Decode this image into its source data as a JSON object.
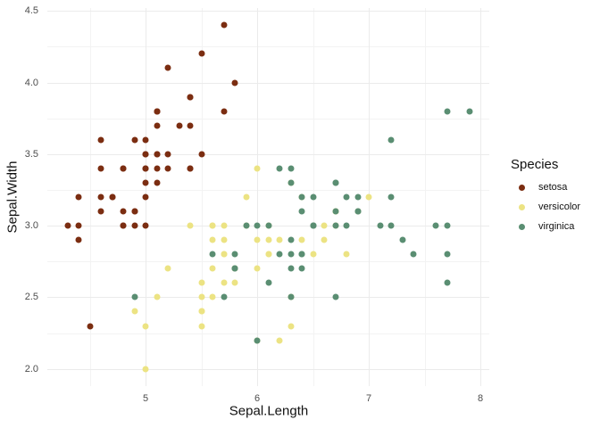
{
  "chart_data": {
    "type": "scatter",
    "title": "",
    "xlabel": "Sepal.Length",
    "ylabel": "Sepal.Width",
    "legend_title": "Species",
    "legend_position": "right",
    "grid": true,
    "background": "#FFFFFF",
    "grid_major_color": "#EBEBEB",
    "grid_minor_color": "#F3F3F3",
    "tick_label_color": "#4D4D4D",
    "x_domain": [
      4.12,
      8.08
    ],
    "y_domain": [
      1.88,
      4.52
    ],
    "x_major_ticks": [
      5,
      6,
      7,
      8
    ],
    "x_tick_labels": [
      "5",
      "6",
      "7",
      "8"
    ],
    "x_minor_ticks": [
      4.5,
      5.5,
      6.5,
      7.5
    ],
    "y_major_ticks": [
      2.0,
      2.5,
      3.0,
      3.5,
      4.0,
      4.5
    ],
    "y_tick_labels": [
      "2.0",
      "2.5",
      "3.0",
      "3.5",
      "4.0",
      "4.5"
    ],
    "y_minor_ticks": [
      2.25,
      2.75,
      3.25,
      3.75,
      4.25
    ],
    "series": [
      {
        "name": "setosa",
        "color": "#7B2D11",
        "points": [
          [
            5.1,
            3.5
          ],
          [
            4.9,
            3.0
          ],
          [
            4.7,
            3.2
          ],
          [
            4.6,
            3.1
          ],
          [
            5.0,
            3.6
          ],
          [
            5.4,
            3.9
          ],
          [
            4.6,
            3.4
          ],
          [
            5.0,
            3.4
          ],
          [
            4.4,
            2.9
          ],
          [
            4.9,
            3.1
          ],
          [
            5.4,
            3.7
          ],
          [
            4.8,
            3.4
          ],
          [
            4.8,
            3.0
          ],
          [
            4.3,
            3.0
          ],
          [
            5.8,
            4.0
          ],
          [
            5.7,
            4.4
          ],
          [
            5.4,
            3.9
          ],
          [
            5.1,
            3.5
          ],
          [
            5.7,
            3.8
          ],
          [
            5.1,
            3.8
          ],
          [
            5.4,
            3.4
          ],
          [
            5.1,
            3.7
          ],
          [
            4.6,
            3.6
          ],
          [
            5.1,
            3.3
          ],
          [
            4.8,
            3.4
          ],
          [
            5.0,
            3.0
          ],
          [
            5.0,
            3.4
          ],
          [
            5.2,
            3.5
          ],
          [
            5.2,
            3.4
          ],
          [
            4.7,
            3.2
          ],
          [
            4.8,
            3.1
          ],
          [
            5.4,
            3.4
          ],
          [
            5.2,
            4.1
          ],
          [
            5.5,
            4.2
          ],
          [
            4.9,
            3.1
          ],
          [
            5.0,
            3.2
          ],
          [
            5.5,
            3.5
          ],
          [
            4.9,
            3.6
          ],
          [
            4.4,
            3.0
          ],
          [
            5.1,
            3.4
          ],
          [
            5.0,
            3.5
          ],
          [
            4.5,
            2.3
          ],
          [
            4.4,
            3.2
          ],
          [
            5.0,
            3.5
          ],
          [
            5.1,
            3.8
          ],
          [
            4.8,
            3.0
          ],
          [
            5.1,
            3.8
          ],
          [
            4.6,
            3.2
          ],
          [
            5.3,
            3.7
          ],
          [
            5.0,
            3.3
          ]
        ]
      },
      {
        "name": "versicolor",
        "color": "#ECE383",
        "points": [
          [
            7.0,
            3.2
          ],
          [
            6.4,
            3.2
          ],
          [
            6.9,
            3.1
          ],
          [
            5.5,
            2.3
          ],
          [
            6.5,
            2.8
          ],
          [
            5.7,
            2.8
          ],
          [
            6.3,
            3.3
          ],
          [
            4.9,
            2.4
          ],
          [
            6.6,
            2.9
          ],
          [
            5.2,
            2.7
          ],
          [
            5.0,
            2.0
          ],
          [
            5.9,
            3.0
          ],
          [
            6.0,
            2.2
          ],
          [
            6.1,
            2.9
          ],
          [
            5.6,
            2.9
          ],
          [
            6.7,
            3.1
          ],
          [
            5.6,
            3.0
          ],
          [
            5.8,
            2.7
          ],
          [
            6.2,
            2.2
          ],
          [
            5.6,
            2.5
          ],
          [
            5.9,
            3.2
          ],
          [
            6.1,
            2.8
          ],
          [
            6.3,
            2.5
          ],
          [
            6.1,
            2.8
          ],
          [
            6.4,
            2.9
          ],
          [
            6.6,
            3.0
          ],
          [
            6.8,
            2.8
          ],
          [
            6.7,
            3.0
          ],
          [
            6.0,
            2.9
          ],
          [
            5.7,
            2.6
          ],
          [
            5.5,
            2.4
          ],
          [
            5.5,
            2.4
          ],
          [
            5.8,
            2.7
          ],
          [
            6.0,
            2.7
          ],
          [
            5.4,
            3.0
          ],
          [
            6.0,
            3.4
          ],
          [
            6.7,
            3.1
          ],
          [
            6.3,
            2.3
          ],
          [
            5.6,
            3.0
          ],
          [
            5.5,
            2.5
          ],
          [
            5.5,
            2.6
          ],
          [
            6.1,
            3.0
          ],
          [
            5.8,
            2.6
          ],
          [
            5.0,
            2.3
          ],
          [
            5.6,
            2.7
          ],
          [
            5.7,
            3.0
          ],
          [
            5.7,
            2.9
          ],
          [
            6.2,
            2.9
          ],
          [
            5.1,
            2.5
          ],
          [
            5.7,
            2.8
          ]
        ]
      },
      {
        "name": "virginica",
        "color": "#5A8E72",
        "points": [
          [
            6.3,
            3.3
          ],
          [
            5.8,
            2.7
          ],
          [
            7.1,
            3.0
          ],
          [
            6.3,
            2.9
          ],
          [
            6.5,
            3.0
          ],
          [
            7.6,
            3.0
          ],
          [
            4.9,
            2.5
          ],
          [
            7.3,
            2.9
          ],
          [
            6.7,
            2.5
          ],
          [
            7.2,
            3.6
          ],
          [
            6.5,
            3.2
          ],
          [
            6.4,
            2.7
          ],
          [
            6.8,
            3.0
          ],
          [
            5.7,
            2.5
          ],
          [
            5.8,
            2.8
          ],
          [
            6.4,
            3.2
          ],
          [
            6.5,
            3.0
          ],
          [
            7.7,
            3.8
          ],
          [
            7.7,
            2.6
          ],
          [
            6.0,
            2.2
          ],
          [
            6.9,
            3.2
          ],
          [
            5.6,
            2.8
          ],
          [
            7.7,
            2.8
          ],
          [
            6.3,
            2.7
          ],
          [
            6.7,
            3.3
          ],
          [
            7.2,
            3.2
          ],
          [
            6.2,
            2.8
          ],
          [
            6.1,
            3.0
          ],
          [
            6.4,
            2.8
          ],
          [
            7.2,
            3.0
          ],
          [
            7.4,
            2.8
          ],
          [
            7.9,
            3.8
          ],
          [
            6.4,
            2.8
          ],
          [
            6.3,
            2.8
          ],
          [
            6.1,
            2.6
          ],
          [
            7.7,
            3.0
          ],
          [
            6.3,
            3.4
          ],
          [
            6.4,
            3.1
          ],
          [
            6.0,
            3.0
          ],
          [
            6.9,
            3.1
          ],
          [
            6.7,
            3.1
          ],
          [
            6.9,
            3.1
          ],
          [
            5.8,
            2.7
          ],
          [
            6.8,
            3.2
          ],
          [
            6.7,
            3.3
          ],
          [
            6.7,
            3.0
          ],
          [
            6.3,
            2.5
          ],
          [
            6.5,
            3.0
          ],
          [
            6.2,
            3.4
          ],
          [
            5.9,
            3.0
          ]
        ]
      }
    ]
  }
}
